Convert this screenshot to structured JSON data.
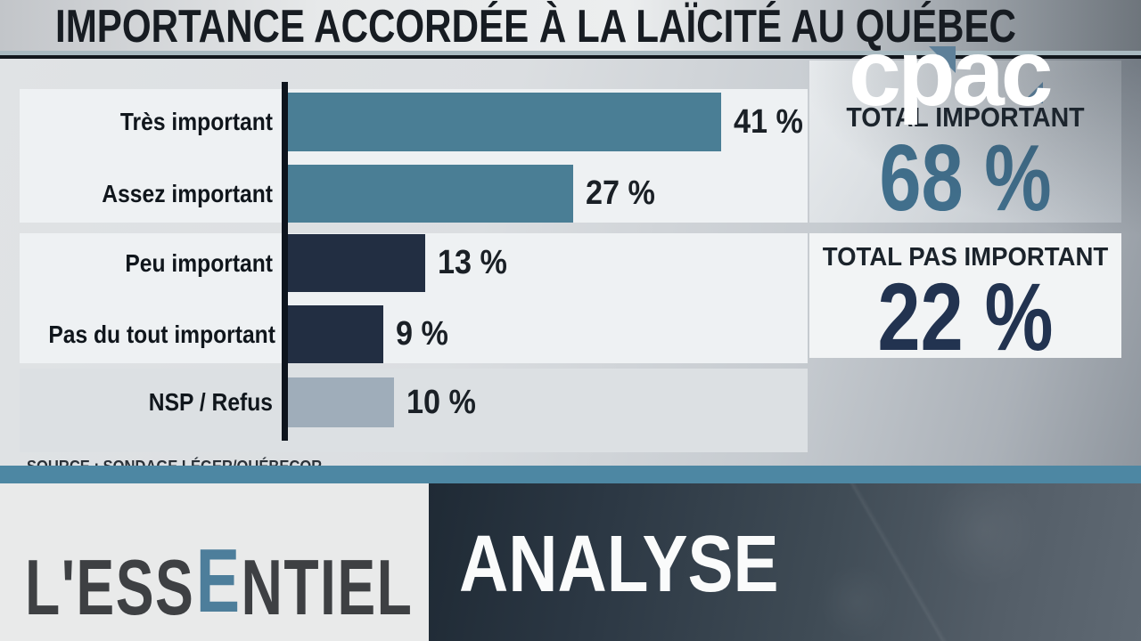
{
  "title": "IMPORTANCE ACCORDÉE À LA LAÏCITÉ AU QUÉBEC",
  "logo": {
    "text": "cpac"
  },
  "chart_data": {
    "type": "bar",
    "orientation": "horizontal",
    "title": "IMPORTANCE ACCORDÉE À LA LAÏCITÉ AU QUÉBEC",
    "categories": [
      "Très important",
      "Assez important",
      "Peu important",
      "Pas du tout important",
      "NSP / Refus"
    ],
    "values": [
      41,
      27,
      13,
      9,
      10
    ],
    "value_labels": [
      "41 %",
      "27 %",
      "13 %",
      "9 %",
      "10 %"
    ],
    "bar_colors": [
      "#4a7e95",
      "#4a7e95",
      "#222e42",
      "#222e42",
      "#9fadba"
    ],
    "xlim": [
      0,
      45
    ],
    "grid": false,
    "legend": false,
    "totals": [
      {
        "label": "TOTAL IMPORTANT",
        "value": "68 %",
        "color": "#416f8c"
      },
      {
        "label": "TOTAL PAS IMPORTANT",
        "value": "22 %",
        "color": "#223350"
      }
    ],
    "source": "SOURCE : SONDAGE LÉGER/QUÉBECOR"
  },
  "banner": {
    "program": "L'ESSENTIEL",
    "program_parts": {
      "pre": "L'ESS",
      "accent": "E",
      "post": "NTIEL"
    },
    "segment": "ANALYSE"
  },
  "colors": {
    "bar_important": "#4a7e95",
    "bar_pas_important": "#222e42",
    "bar_nsp": "#9fadba",
    "teal_band": "#4d87a3",
    "total_important_value": "#416f8c",
    "total_pas_important_value": "#223350",
    "wordmark_accent": "#4d7e9b"
  }
}
